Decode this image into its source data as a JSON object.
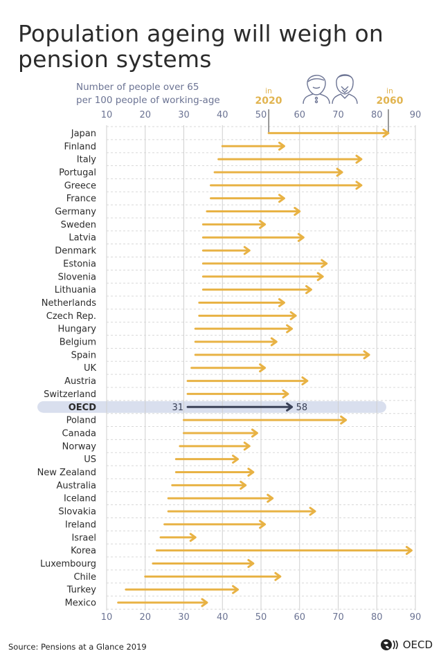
{
  "title": "Population ageing will weigh on pension systems",
  "subtitle_line1": "Number of people over 65",
  "subtitle_line2": "per 100 people of working-age",
  "year_start": {
    "prefix": "in",
    "year": "2020"
  },
  "year_end": {
    "prefix": "in",
    "year": "2060"
  },
  "source": "Source: Pensions at a Glance 2019",
  "logo_text": "OECD",
  "colors": {
    "arrow": "#e8b244",
    "oecd_arrow": "#3a4157",
    "highlight": "#d9dfee",
    "grid": "#cfcfcf",
    "tick": "#6b7393",
    "label": "#2b2b2b",
    "year": "#e1b450"
  },
  "chart_data": {
    "type": "arrow-range",
    "title": "Population ageing will weigh on pension systems",
    "xlabel": "Number of people over 65 per 100 people of working-age",
    "xlim": [
      10,
      90
    ],
    "xticks": [
      10,
      20,
      30,
      40,
      50,
      60,
      70,
      80,
      90
    ],
    "series_names": [
      "2020",
      "2060"
    ],
    "highlight": "OECD",
    "rows": [
      {
        "country": "Japan",
        "start": 52,
        "end": 83
      },
      {
        "country": "Finland",
        "start": 40,
        "end": 56
      },
      {
        "country": "Italy",
        "start": 39,
        "end": 76
      },
      {
        "country": "Portugal",
        "start": 38,
        "end": 71
      },
      {
        "country": "Greece",
        "start": 37,
        "end": 76
      },
      {
        "country": "France",
        "start": 37,
        "end": 56
      },
      {
        "country": "Germany",
        "start": 36,
        "end": 60
      },
      {
        "country": "Sweden",
        "start": 35,
        "end": 51
      },
      {
        "country": "Latvia",
        "start": 35,
        "end": 61
      },
      {
        "country": "Denmark",
        "start": 35,
        "end": 47
      },
      {
        "country": "Estonia",
        "start": 35,
        "end": 67
      },
      {
        "country": "Slovenia",
        "start": 35,
        "end": 66
      },
      {
        "country": "Lithuania",
        "start": 35,
        "end": 63
      },
      {
        "country": "Netherlands",
        "start": 34,
        "end": 56
      },
      {
        "country": "Czech Rep.",
        "start": 34,
        "end": 59
      },
      {
        "country": "Hungary",
        "start": 33,
        "end": 58
      },
      {
        "country": "Belgium",
        "start": 33,
        "end": 54
      },
      {
        "country": "Spain",
        "start": 33,
        "end": 78
      },
      {
        "country": "UK",
        "start": 32,
        "end": 51
      },
      {
        "country": "Austria",
        "start": 31,
        "end": 62
      },
      {
        "country": "Switzerland",
        "start": 31,
        "end": 57
      },
      {
        "country": "OECD",
        "start": 31,
        "end": 58,
        "start_label": "31",
        "end_label": "58"
      },
      {
        "country": "Poland",
        "start": 30,
        "end": 72
      },
      {
        "country": "Canada",
        "start": 30,
        "end": 49
      },
      {
        "country": "Norway",
        "start": 29,
        "end": 47
      },
      {
        "country": "US",
        "start": 28,
        "end": 44
      },
      {
        "country": "New Zealand",
        "start": 28,
        "end": 48
      },
      {
        "country": "Australia",
        "start": 27,
        "end": 46
      },
      {
        "country": "Iceland",
        "start": 26,
        "end": 53
      },
      {
        "country": "Slovakia",
        "start": 26,
        "end": 64
      },
      {
        "country": "Ireland",
        "start": 25,
        "end": 51
      },
      {
        "country": "Israel",
        "start": 24,
        "end": 33
      },
      {
        "country": "Korea",
        "start": 23,
        "end": 89
      },
      {
        "country": "Luxembourg",
        "start": 22,
        "end": 48
      },
      {
        "country": "Chile",
        "start": 20,
        "end": 55
      },
      {
        "country": "Turkey",
        "start": 15,
        "end": 44
      },
      {
        "country": "Mexico",
        "start": 13,
        "end": 36
      }
    ]
  }
}
